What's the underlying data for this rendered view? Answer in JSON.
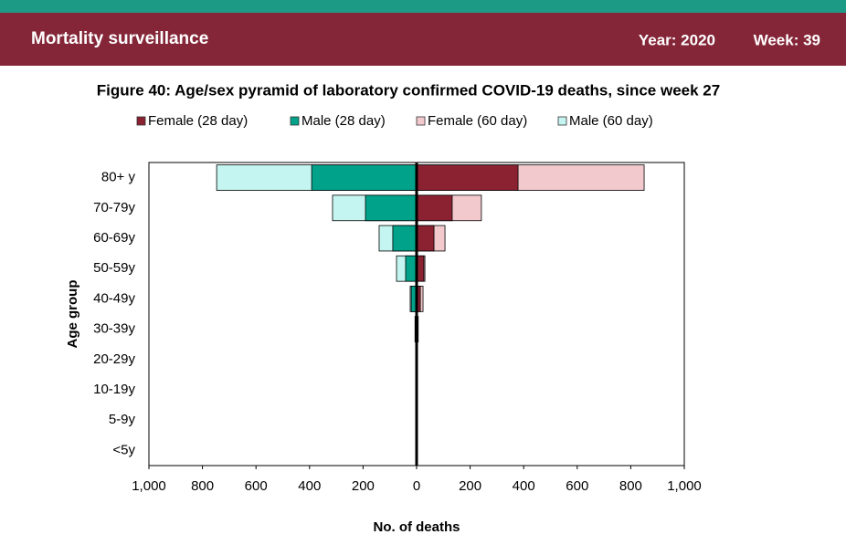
{
  "header": {
    "title": "Mortality surveillance",
    "year": "Year: 2020",
    "week": "Week: 39"
  },
  "chart_data": {
    "type": "pyramid",
    "title": "Figure 40: Age/sex pyramid of laboratory confirmed COVID-19 deaths, since week 27",
    "x_label": "No. of deaths",
    "y_label": "Age group",
    "categories": [
      "80+ y",
      "70-79y",
      "60-69y",
      "50-59y",
      "40-49y",
      "30-39y",
      "20-29y",
      "10-19y",
      "5-9y",
      "<5y"
    ],
    "series": [
      {
        "name": "Female (28 day)",
        "color": "#8b2232",
        "values": [
          379,
          133,
          65,
          27,
          14,
          5,
          1,
          0,
          0,
          0
        ]
      },
      {
        "name": "Male (28 day)",
        "color": "#00a38a",
        "values": [
          -392,
          -191,
          -89,
          -41,
          -20,
          -5,
          -2,
          0,
          0,
          0
        ]
      },
      {
        "name": "Female (60 day)",
        "color": "#f2c9cc",
        "values": [
          850,
          242,
          106,
          31,
          24,
          6,
          1,
          0,
          0,
          0
        ]
      },
      {
        "name": "Male (60 day)",
        "color": "#c4f5f0",
        "values": [
          -747,
          -314,
          -140,
          -75,
          -24,
          -6,
          -2,
          0,
          0,
          0
        ]
      }
    ],
    "xlim": [
      -1000,
      1000
    ],
    "xticks": [
      {
        "value": -1000,
        "label": "1,000"
      },
      {
        "value": -800,
        "label": "800"
      },
      {
        "value": -600,
        "label": "600"
      },
      {
        "value": -400,
        "label": "400"
      },
      {
        "value": -200,
        "label": "200"
      },
      0,
      200,
      400,
      600,
      800,
      {
        "value": 1000,
        "label": "1,000"
      }
    ]
  }
}
